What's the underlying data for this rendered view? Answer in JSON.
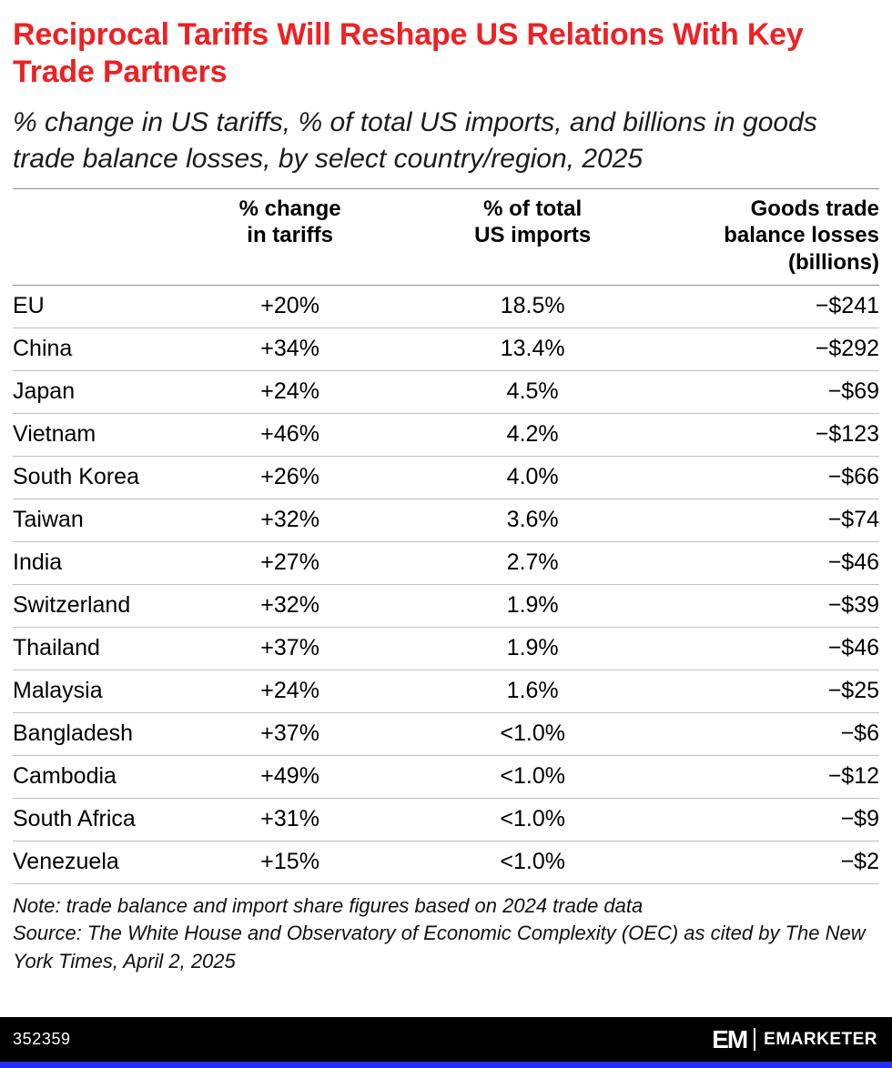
{
  "title": "Reciprocal Tariffs Will Reshape US Relations With Key Trade Partners",
  "subtitle": "% change in US tariffs, % of total US imports, and billions in goods trade balance losses, by select country/region, 2025",
  "chart_data": {
    "type": "table",
    "title": "Reciprocal Tariffs Will Reshape US Relations With Key Trade Partners",
    "subtitle": "% change in US tariffs, % of total US imports, and billions in goods trade balance losses, by select country/region, 2025",
    "columns": [
      "",
      "% change\nin tariffs",
      "% of total\nUS imports",
      "Goods trade\nbalance losses\n(billions)"
    ],
    "rows": [
      {
        "country": "EU",
        "tariff_change": "+20%",
        "import_share": "18.5%",
        "trade_balance_loss": "−$241"
      },
      {
        "country": "China",
        "tariff_change": "+34%",
        "import_share": "13.4%",
        "trade_balance_loss": "−$292"
      },
      {
        "country": "Japan",
        "tariff_change": "+24%",
        "import_share": "4.5%",
        "trade_balance_loss": "−$69"
      },
      {
        "country": "Vietnam",
        "tariff_change": "+46%",
        "import_share": "4.2%",
        "trade_balance_loss": "−$123"
      },
      {
        "country": "South Korea",
        "tariff_change": "+26%",
        "import_share": "4.0%",
        "trade_balance_loss": "−$66"
      },
      {
        "country": "Taiwan",
        "tariff_change": "+32%",
        "import_share": "3.6%",
        "trade_balance_loss": "−$74"
      },
      {
        "country": "India",
        "tariff_change": "+27%",
        "import_share": "2.7%",
        "trade_balance_loss": "−$46"
      },
      {
        "country": "Switzerland",
        "tariff_change": "+32%",
        "import_share": "1.9%",
        "trade_balance_loss": "−$39"
      },
      {
        "country": "Thailand",
        "tariff_change": "+37%",
        "import_share": "1.9%",
        "trade_balance_loss": "−$46"
      },
      {
        "country": "Malaysia",
        "tariff_change": "+24%",
        "import_share": "1.6%",
        "trade_balance_loss": "−$25"
      },
      {
        "country": "Bangladesh",
        "tariff_change": "+37%",
        "import_share": "<1.0%",
        "trade_balance_loss": "−$6"
      },
      {
        "country": "Cambodia",
        "tariff_change": "+49%",
        "import_share": "<1.0%",
        "trade_balance_loss": "−$12"
      },
      {
        "country": "South Africa",
        "tariff_change": "+31%",
        "import_share": "<1.0%",
        "trade_balance_loss": "−$9"
      },
      {
        "country": "Venezuela",
        "tariff_change": "+15%",
        "import_share": "<1.0%",
        "trade_balance_loss": "−$2"
      }
    ]
  },
  "note": "Note: trade balance and import share figures based on 2024 trade data",
  "source": "Source: The White House and Observatory of Economic Complexity (OEC) as cited by The New York Times, April 2, 2025",
  "footer": {
    "chart_id": "352359",
    "logo_mark": "EM",
    "brand": "EMARKETER"
  },
  "colors": {
    "title_red": "#ed2124",
    "footer_black": "#000000",
    "accent_blue": "#2430f0",
    "row_divider_gray": "#bfbfbf"
  }
}
